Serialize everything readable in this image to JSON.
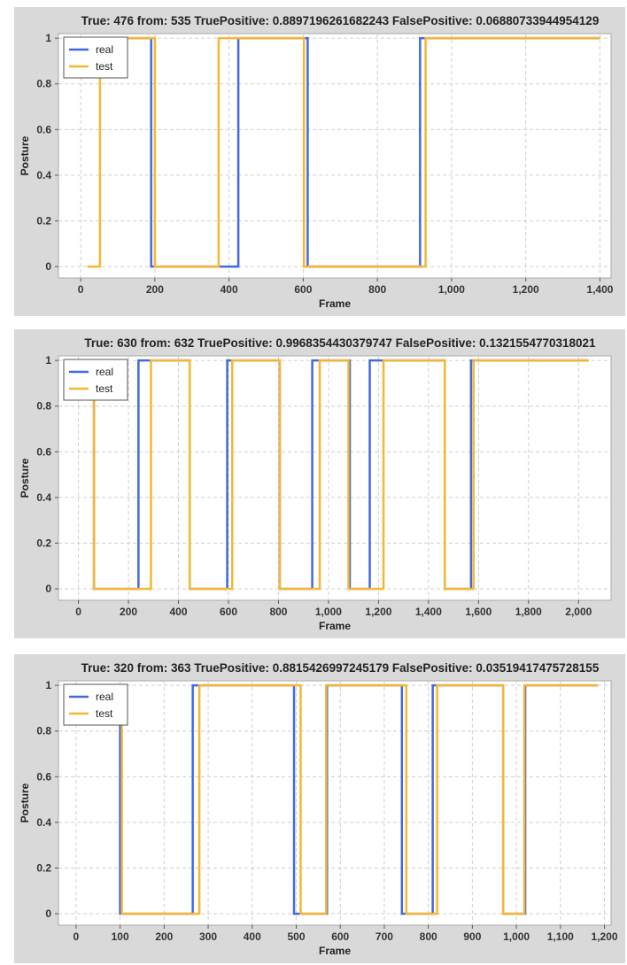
{
  "colors": {
    "real": "#4169e1",
    "test": "#f5b731",
    "panel_bg": "#d9d9d9",
    "grid": "#cfcfcf"
  },
  "chart_data": [
    {
      "type": "line",
      "title": "True: 476 from: 535 TruePositive: 0.8897196261682243 FalsePositive: 0.06880733944954129",
      "xlabel": "Frame",
      "ylabel": "Posture",
      "xlim": [
        -60,
        1430
      ],
      "ylim": [
        -0.05,
        1.02
      ],
      "xticks": [
        0,
        200,
        400,
        600,
        800,
        1000,
        1200,
        1400
      ],
      "xtick_labels": [
        "0",
        "200",
        "400",
        "600",
        "800",
        "1,000",
        "1,200",
        "1,400"
      ],
      "yticks": [
        0,
        0.2,
        0.4,
        0.6,
        0.8,
        1
      ],
      "ytick_labels": [
        "0",
        "0.2",
        "0.4",
        "0.6",
        "0.8",
        "1"
      ],
      "grid": true,
      "legend_position": "top-left",
      "series": [
        {
          "name": "real",
          "color": "#4169e1",
          "steps": [
            [
              18,
              1
            ],
            [
              190,
              0
            ],
            [
              425,
              1
            ],
            [
              612,
              0
            ],
            [
              915,
              1
            ],
            [
              1400,
              1
            ]
          ]
        },
        {
          "name": "test",
          "color": "#f5b731",
          "steps": [
            [
              18,
              0
            ],
            [
              52,
              1
            ],
            [
              200,
              0
            ],
            [
              372,
              1
            ],
            [
              602,
              0
            ],
            [
              930,
              1
            ],
            [
              1400,
              1
            ]
          ]
        }
      ]
    },
    {
      "type": "line",
      "title": "True: 630 from: 632 TruePositive: 0.9968354430379747 FalsePositive: 0.1321554770318021",
      "xlabel": "Frame",
      "ylabel": "Posture",
      "xlim": [
        -80,
        2130
      ],
      "ylim": [
        -0.05,
        1.02
      ],
      "xticks": [
        0,
        200,
        400,
        600,
        800,
        1000,
        1200,
        1400,
        1600,
        1800,
        2000
      ],
      "xtick_labels": [
        "0",
        "200",
        "400",
        "600",
        "800",
        "1,000",
        "1,200",
        "1,400",
        "1,600",
        "1,800",
        "2,000"
      ],
      "yticks": [
        0,
        0.2,
        0.4,
        0.6,
        0.8,
        1
      ],
      "ytick_labels": [
        "0",
        "0.2",
        "0.4",
        "0.6",
        "0.8",
        "1"
      ],
      "grid": true,
      "legend_position": "top-left",
      "series": [
        {
          "name": "real",
          "color": "#4169e1",
          "steps": [
            [
              55,
              1
            ],
            [
              62,
              0
            ],
            [
              240,
              1
            ],
            [
              445,
              0
            ],
            [
              595,
              1
            ],
            [
              805,
              0
            ],
            [
              935,
              1
            ],
            [
              1085,
              0
            ],
            [
              1165,
              1
            ],
            [
              1465,
              0
            ],
            [
              1570,
              1
            ],
            [
              2040,
              1
            ]
          ]
        },
        {
          "name": "test",
          "color": "#f5b731",
          "steps": [
            [
              55,
              1
            ],
            [
              62,
              0
            ],
            [
              290,
              1
            ],
            [
              445,
              0
            ],
            [
              615,
              1
            ],
            [
              805,
              0
            ],
            [
              965,
              1
            ],
            [
              1080,
              0
            ],
            [
              1220,
              1
            ],
            [
              1465,
              0
            ],
            [
              1580,
              1
            ],
            [
              2040,
              1
            ]
          ]
        }
      ]
    },
    {
      "type": "line",
      "title": "True: 320 from: 363 TruePositive: 0.8815426997245179 FalsePositive: 0.03519417475728155",
      "xlabel": "Frame",
      "ylabel": "Posture",
      "xlim": [
        -40,
        1215
      ],
      "ylim": [
        -0.05,
        1.02
      ],
      "xticks": [
        0,
        100,
        200,
        300,
        400,
        500,
        600,
        700,
        800,
        900,
        1000,
        1100,
        1200
      ],
      "xtick_labels": [
        "0",
        "100",
        "200",
        "300",
        "400",
        "500",
        "600",
        "700",
        "800",
        "900",
        "1,000",
        "1,100",
        "1,200"
      ],
      "yticks": [
        0,
        0.2,
        0.4,
        0.6,
        0.8,
        1
      ],
      "ytick_labels": [
        "0",
        "0.2",
        "0.4",
        "0.6",
        "0.8",
        "1"
      ],
      "grid": true,
      "legend_position": "top-left",
      "series": [
        {
          "name": "real",
          "color": "#4169e1",
          "steps": [
            [
              98,
              1
            ],
            [
              100,
              0
            ],
            [
              265,
              1
            ],
            [
              495,
              0
            ],
            [
              570,
              1
            ],
            [
              740,
              0
            ],
            [
              810,
              1
            ],
            [
              970,
              0
            ],
            [
              1020,
              1
            ],
            [
              1185,
              1
            ]
          ]
        },
        {
          "name": "test",
          "color": "#f5b731",
          "steps": [
            [
              98,
              1
            ],
            [
              104,
              0
            ],
            [
              280,
              1
            ],
            [
              510,
              0
            ],
            [
              568,
              1
            ],
            [
              750,
              0
            ],
            [
              820,
              1
            ],
            [
              970,
              0
            ],
            [
              1018,
              1
            ],
            [
              1185,
              1
            ]
          ]
        }
      ]
    }
  ]
}
